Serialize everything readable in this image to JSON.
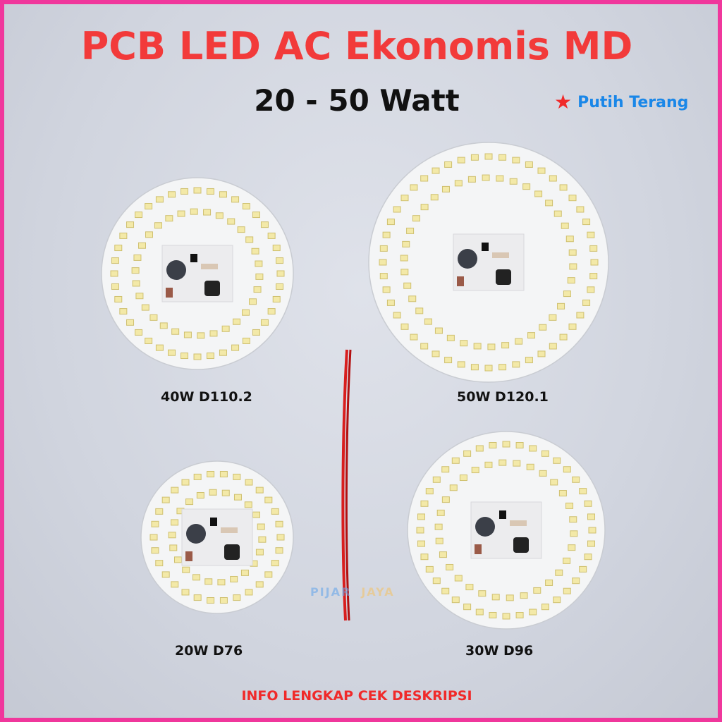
{
  "title": "PCB LED AC Ekonomis MD",
  "subtitle": "20 - 50 Watt",
  "tag": {
    "icon": "star-icon",
    "label": "Putih Terang",
    "icon_color": "#f02a2a",
    "label_color": "#1a87e8"
  },
  "products": [
    {
      "label": "40W D110.2"
    },
    {
      "label": "50W D120.1"
    },
    {
      "label": "20W D76"
    },
    {
      "label": "30W D96"
    }
  ],
  "watermark": {
    "part1": "PIJAR",
    "part2": "JAYA"
  },
  "footer": "INFO LENGKAP CEK DESKRIPSI",
  "colors": {
    "border": "#f0379c",
    "title": "#f23a3a",
    "footer": "#f02a2a"
  }
}
